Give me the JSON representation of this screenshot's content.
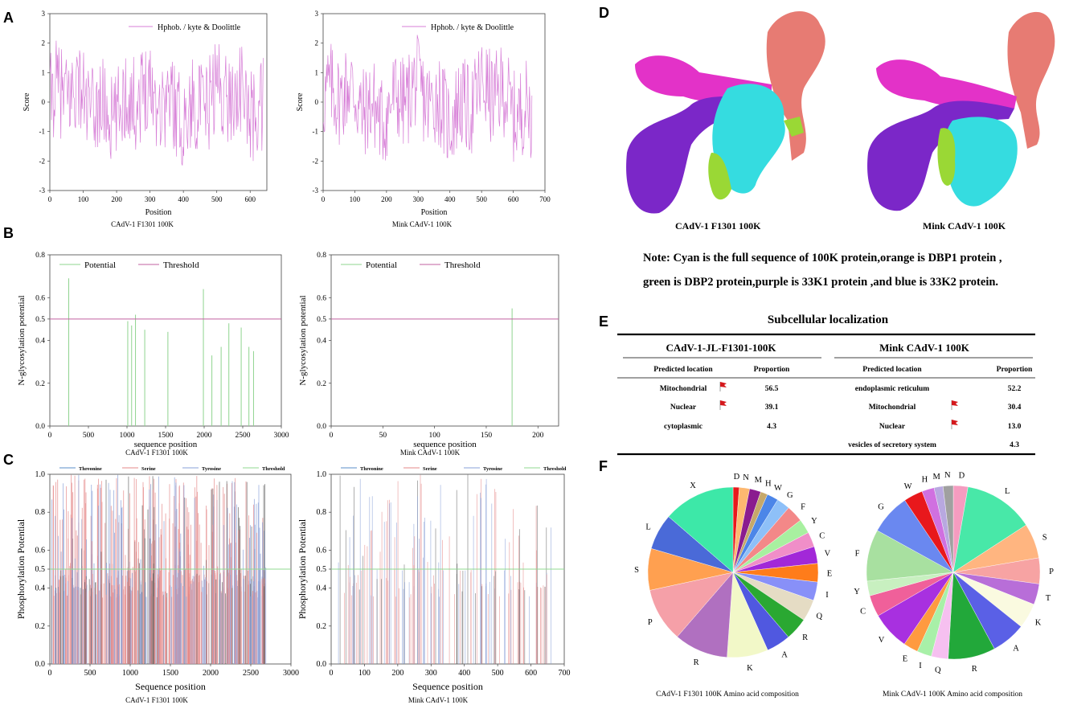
{
  "panels": {
    "A": "A",
    "B": "B",
    "C": "C",
    "D": "D",
    "E": "E",
    "F": "F"
  },
  "colors": {
    "hydro": "#d77fd7",
    "potential": "#8fd48f",
    "threshold": "#c060a0",
    "thr": "#5a8fc8",
    "ser": "#e58a8a",
    "tyr": "#8aa0d8",
    "thrC": "#90d890"
  },
  "chart_data": [
    {
      "id": "A1",
      "type": "line",
      "title": "",
      "legend": "Hphob. / kyte & Doolittle",
      "xlabel": "Position",
      "ylabel": "Score",
      "caption": "CAdV-1 F1301 100K",
      "xlim": [
        0,
        650
      ],
      "ylim": [
        -3,
        3
      ],
      "xticks": [
        0,
        100,
        200,
        300,
        400,
        500,
        600
      ],
      "yticks": [
        -3,
        -2,
        -1,
        0,
        1,
        2,
        3
      ]
    },
    {
      "id": "A2",
      "type": "line",
      "title": "",
      "legend": "Hphob. / kyte & Doolittle",
      "xlabel": "Position",
      "ylabel": "Score",
      "caption": "Mink CAdV-1 100K",
      "xlim": [
        0,
        700
      ],
      "ylim": [
        -3,
        3
      ],
      "xticks": [
        0,
        100,
        200,
        300,
        400,
        500,
        600,
        700
      ],
      "yticks": [
        -3,
        -2,
        -1,
        0,
        1,
        2,
        3
      ]
    },
    {
      "id": "B1",
      "type": "bar",
      "legend": [
        "Potential",
        "Threshold"
      ],
      "xlabel": "sequence position",
      "ylabel": "N-glycosylation potential",
      "caption": "CAdV-1 F1301 100K",
      "xlim": [
        0,
        3000
      ],
      "ylim": [
        0,
        0.8
      ],
      "xticks": [
        0,
        500,
        1000,
        1500,
        2000,
        2500,
        3000
      ],
      "yticks": [
        0.0,
        0.2,
        0.4,
        0.5,
        0.6,
        0.8
      ],
      "threshold": 0.5,
      "x": [
        245,
        1010,
        1060,
        1110,
        1230,
        1530,
        1990,
        2100,
        2220,
        2320,
        2480,
        2580,
        2640
      ],
      "values": [
        0.69,
        0.49,
        0.47,
        0.52,
        0.45,
        0.44,
        0.64,
        0.33,
        0.37,
        0.48,
        0.46,
        0.37,
        0.35
      ]
    },
    {
      "id": "B2",
      "type": "bar",
      "legend": [
        "Potential",
        "Threshold"
      ],
      "xlabel": "sequence position",
      "ylabel": "N-glycosylation potential",
      "caption": "Mink CAdV-1 100K",
      "xlim": [
        0,
        220
      ],
      "ylim": [
        0,
        0.8
      ],
      "xticks": [
        0,
        50,
        100,
        150,
        200
      ],
      "yticks": [
        0.0,
        0.2,
        0.4,
        0.5,
        0.6,
        0.8
      ],
      "threshold": 0.5,
      "x": [
        175
      ],
      "values": [
        0.55
      ]
    },
    {
      "id": "C1",
      "type": "bar",
      "legend": [
        "Threonine",
        "Serine",
        "Tyrosine",
        "Threshold"
      ],
      "xlabel": "Sequence position",
      "ylabel": "Phosphorylation Potential",
      "caption": "CAdV-1 F1301 100K",
      "xlim": [
        0,
        3000
      ],
      "ylim": [
        0,
        1.0
      ],
      "xticks": [
        0,
        500,
        1000,
        1500,
        2000,
        2500,
        3000
      ],
      "yticks": [
        0.0,
        0.2,
        0.4,
        0.5,
        0.6,
        0.8,
        1.0
      ],
      "threshold": 0.5
    },
    {
      "id": "C2",
      "type": "bar",
      "legend": [
        "Threonine",
        "Serine",
        "Tyrosine",
        "Threshold"
      ],
      "xlabel": "Sequence position",
      "ylabel": "Phosphorylation Potential",
      "caption": "Mink CAdV-1 100K",
      "xlim": [
        0,
        700
      ],
      "ylim": [
        0,
        1.0
      ],
      "xticks": [
        0,
        100,
        200,
        300,
        400,
        500,
        600,
        700
      ],
      "yticks": [
        0.0,
        0.2,
        0.4,
        0.5,
        0.6,
        0.8,
        1.0
      ],
      "threshold": 0.5
    },
    {
      "id": "F1",
      "type": "pie",
      "caption": "CAdV-1 F1301 100K Amino acid composition",
      "labels": [
        "D",
        "N",
        "M",
        "H",
        "W",
        "G",
        "F",
        "Y",
        "C",
        "V",
        "E",
        "I",
        "Q",
        "R",
        "A",
        "K",
        "R",
        "P",
        "S",
        "L",
        "X"
      ],
      "values": [
        1.2,
        2.0,
        2.2,
        1.4,
        2.2,
        2.6,
        3.3,
        2.8,
        2.9,
        3.3,
        3.6,
        3.6,
        4.2,
        4.4,
        4.7,
        8.0,
        10.5,
        10.5,
        8.1,
        7.0,
        14.0
      ],
      "colors": [
        "#e8191c",
        "#fdb870",
        "#8a1b8f",
        "#c6a86a",
        "#4c86e8",
        "#8ec0f8",
        "#f38888",
        "#a8f0a0",
        "#f08ec8",
        "#a228d8",
        "#ff7c1a",
        "#8890f8",
        "#e5dcc4",
        "#2aa832",
        "#5058e0",
        "#f2f8c8",
        "#b070c0",
        "#f5a0a8",
        "#ffa050",
        "#4a6ad8",
        "#3de8a8"
      ]
    },
    {
      "id": "F2",
      "type": "pie",
      "caption": "Mink CAdV-1 100K Amino acid composition",
      "labels": [
        "D",
        "L",
        "S",
        "P",
        "T",
        "K",
        "A",
        "R",
        "Q",
        "I",
        "E",
        "V",
        "C",
        "Y",
        "F",
        "G",
        "W",
        "H",
        "M",
        "N"
      ],
      "values": [
        2.6,
        12.5,
        6.2,
        4.6,
        3.7,
        4.5,
        6.1,
        8.4,
        3.0,
        2.6,
        2.6,
        6.8,
        3.8,
        2.6,
        9.2,
        7.2,
        3.4,
        2.2,
        1.6,
        1.8
      ],
      "colors": [
        "#f59cc0",
        "#48e8a8",
        "#ffb580",
        "#f7a3a3",
        "#b86ed8",
        "#fafae0",
        "#5a60e6",
        "#22a83a",
        "#f6c0f0",
        "#a8f0a8",
        "#ff9a40",
        "#a830e0",
        "#f0609a",
        "#c8f0c0",
        "#a8e0a0",
        "#6a88f0",
        "#e8181c",
        "#d070e0",
        "#b8a8e0",
        "#a0a0a0"
      ]
    }
  ],
  "panelA": {
    "legend1": "Hphob. / kyte & Doolittle",
    "legend2": "Hphob. / kyte & Doolittle"
  },
  "panelD": {
    "cap1": "CAdV-1 F1301 100K",
    "cap2": "Mink CAdV-1 100K",
    "note1": "Note: Cyan is the full sequence of 100K protein,orange is DBP1 protein ,",
    "note2": "green is DBP2 protein,purple is 33K1 protein ,and blue is 33K2 protein."
  },
  "panelE": {
    "title": "Subcellular localization",
    "t1": "CAdV-1-JL-F1301-100K",
    "t2": "Mink CAdV-1 100K",
    "h1": "Predicted location",
    "h2": "Proportion",
    "h3": "Predicted location",
    "h4": "Proportion",
    "left": [
      {
        "loc": "Mitochondrial",
        "p": "56.5"
      },
      {
        "loc": "Nuclear",
        "p": "39.1"
      },
      {
        "loc": "cytoplasmic",
        "p": "4.3"
      }
    ],
    "right": [
      {
        "loc": "endoplasmic reticulum",
        "p": "52.2"
      },
      {
        "loc": "Mitochondrial",
        "p": "30.4"
      },
      {
        "loc": "Nuclear",
        "p": "13.0"
      },
      {
        "loc": "vesicles of secretory system",
        "p": "4.3"
      }
    ]
  }
}
